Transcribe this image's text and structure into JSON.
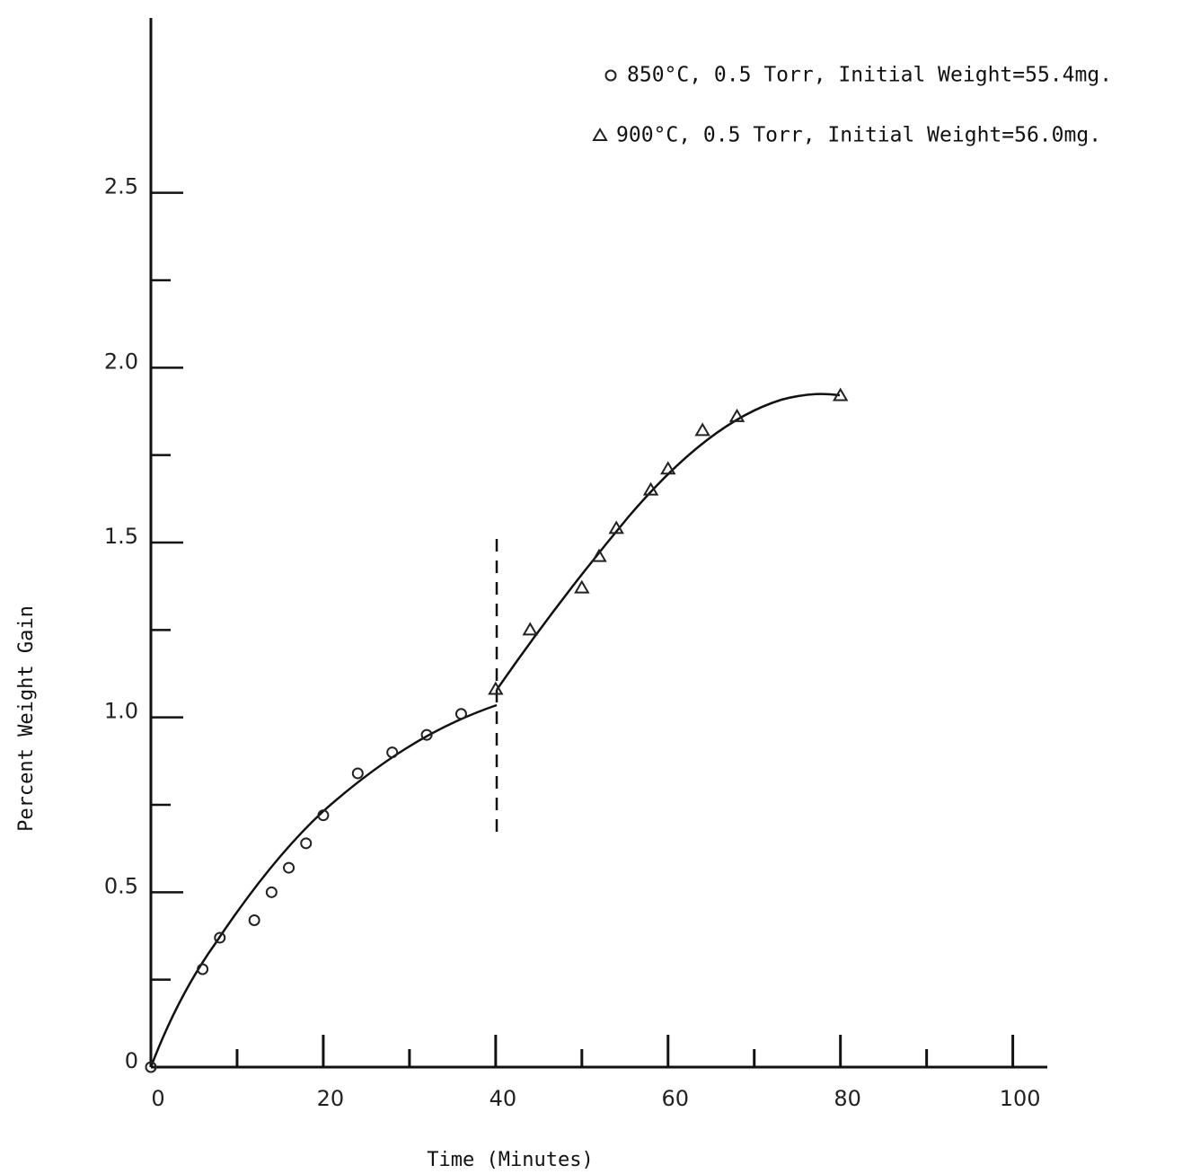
{
  "chart_data": {
    "type": "scatter",
    "x_label": "Time (Minutes)",
    "y_label": "Percent Weight Gain",
    "xlim": [
      0,
      104
    ],
    "ylim": [
      0,
      3.0
    ],
    "xticks": [
      0,
      20,
      40,
      60,
      80,
      100
    ],
    "x_minor_ticks": [
      10,
      30,
      50,
      70,
      90
    ],
    "yticks": [
      0,
      0.5,
      {
        "value": 1,
        "label": "1.0"
      },
      1.5,
      {
        "value": 2,
        "label": "2.0"
      },
      2.5
    ],
    "y_minor_ticks": [
      0.25,
      0.75,
      1.25,
      1.75,
      2.25
    ],
    "legend": "top-right",
    "series": [
      {
        "name": "850°C, 0.5 Torr, Initial Weight=55.4mg.",
        "marker": "circle",
        "color": "#222",
        "x": [
          0,
          6,
          8,
          12,
          14,
          16,
          18,
          20,
          24,
          28,
          32,
          36
        ],
        "values": [
          0,
          0.28,
          0.37,
          0.42,
          0.5,
          0.57,
          0.64,
          0.72,
          0.84,
          0.9,
          0.95,
          1.01
        ]
      },
      {
        "name": "900°C, 0.5 Torr, Initial Weight=56.0mg.",
        "marker": "triangle",
        "color": "#222",
        "x": [
          40,
          44,
          50,
          52,
          54,
          58,
          60,
          64,
          68,
          80
        ],
        "values": [
          1.08,
          1.25,
          1.37,
          1.46,
          1.54,
          1.65,
          1.71,
          1.82,
          1.86,
          1.92
        ]
      }
    ]
  }
}
